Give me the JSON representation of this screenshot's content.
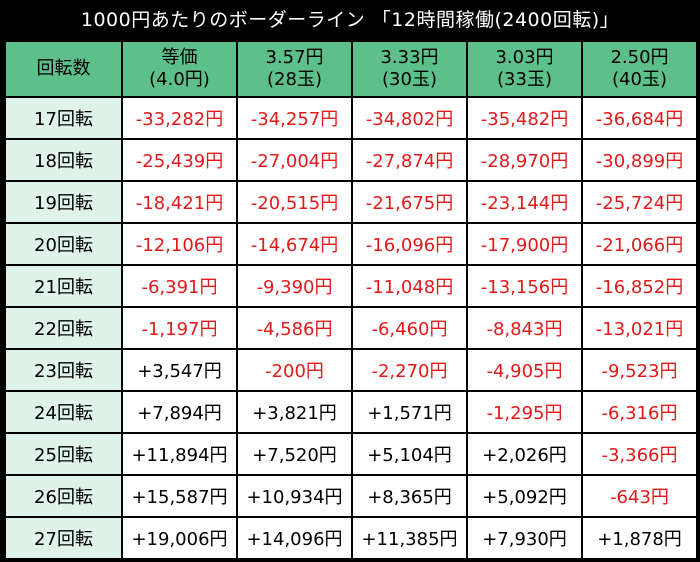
{
  "title": "1000円あたりのボーダーライン 「12時間稼働(2400回転)」",
  "header": {
    "row_label": "回転数",
    "columns": [
      {
        "line1": "等価",
        "line2": "(4.0円)"
      },
      {
        "line1": "3.57円",
        "line2": "(28玉)"
      },
      {
        "line1": "3.33円",
        "line2": "(30玉)"
      },
      {
        "line1": "3.03円",
        "line2": "(33玉)"
      },
      {
        "line1": "2.50円",
        "line2": "(40玉)"
      }
    ]
  },
  "rows": [
    {
      "label": "17回転",
      "values": [
        "-33,282円",
        "-34,257円",
        "-34,802円",
        "-35,482円",
        "-36,684円"
      ]
    },
    {
      "label": "18回転",
      "values": [
        "-25,439円",
        "-27,004円",
        "-27,874円",
        "-28,970円",
        "-30,899円"
      ]
    },
    {
      "label": "19回転",
      "values": [
        "-18,421円",
        "-20,515円",
        "-21,675円",
        "-23,144円",
        "-25,724円"
      ]
    },
    {
      "label": "20回転",
      "values": [
        "-12,106円",
        "-14,674円",
        "-16,096円",
        "-17,900円",
        "-21,066円"
      ]
    },
    {
      "label": "21回転",
      "values": [
        "-6,391円",
        "-9,390円",
        "-11,048円",
        "-13,156円",
        "-16,852円"
      ]
    },
    {
      "label": "22回転",
      "values": [
        "-1,197円",
        "-4,586円",
        "-6,460円",
        "-8,843円",
        "-13,021円"
      ]
    },
    {
      "label": "23回転",
      "values": [
        "+3,547円",
        "-200円",
        "-2,270円",
        "-4,905円",
        "-9,523円"
      ]
    },
    {
      "label": "24回転",
      "values": [
        "+7,894円",
        "+3,821円",
        "+1,571円",
        "-1,295円",
        "-6,316円"
      ]
    },
    {
      "label": "25回転",
      "values": [
        "+11,894円",
        "+7,520円",
        "+5,104円",
        "+2,026円",
        "-3,366円"
      ]
    },
    {
      "label": "26回転",
      "values": [
        "+15,587円",
        "+10,934円",
        "+8,365円",
        "+5,092円",
        "-643円"
      ]
    },
    {
      "label": "27回転",
      "values": [
        "+19,006円",
        "+14,096円",
        "+11,385円",
        "+7,930円",
        "+1,878円"
      ]
    }
  ],
  "colors": {
    "negative": "#e31a1a",
    "positive": "#000000",
    "header_bg": "#5dbf8a",
    "row_label_bg": "#e0f3ea",
    "title_bg": "#000000"
  }
}
